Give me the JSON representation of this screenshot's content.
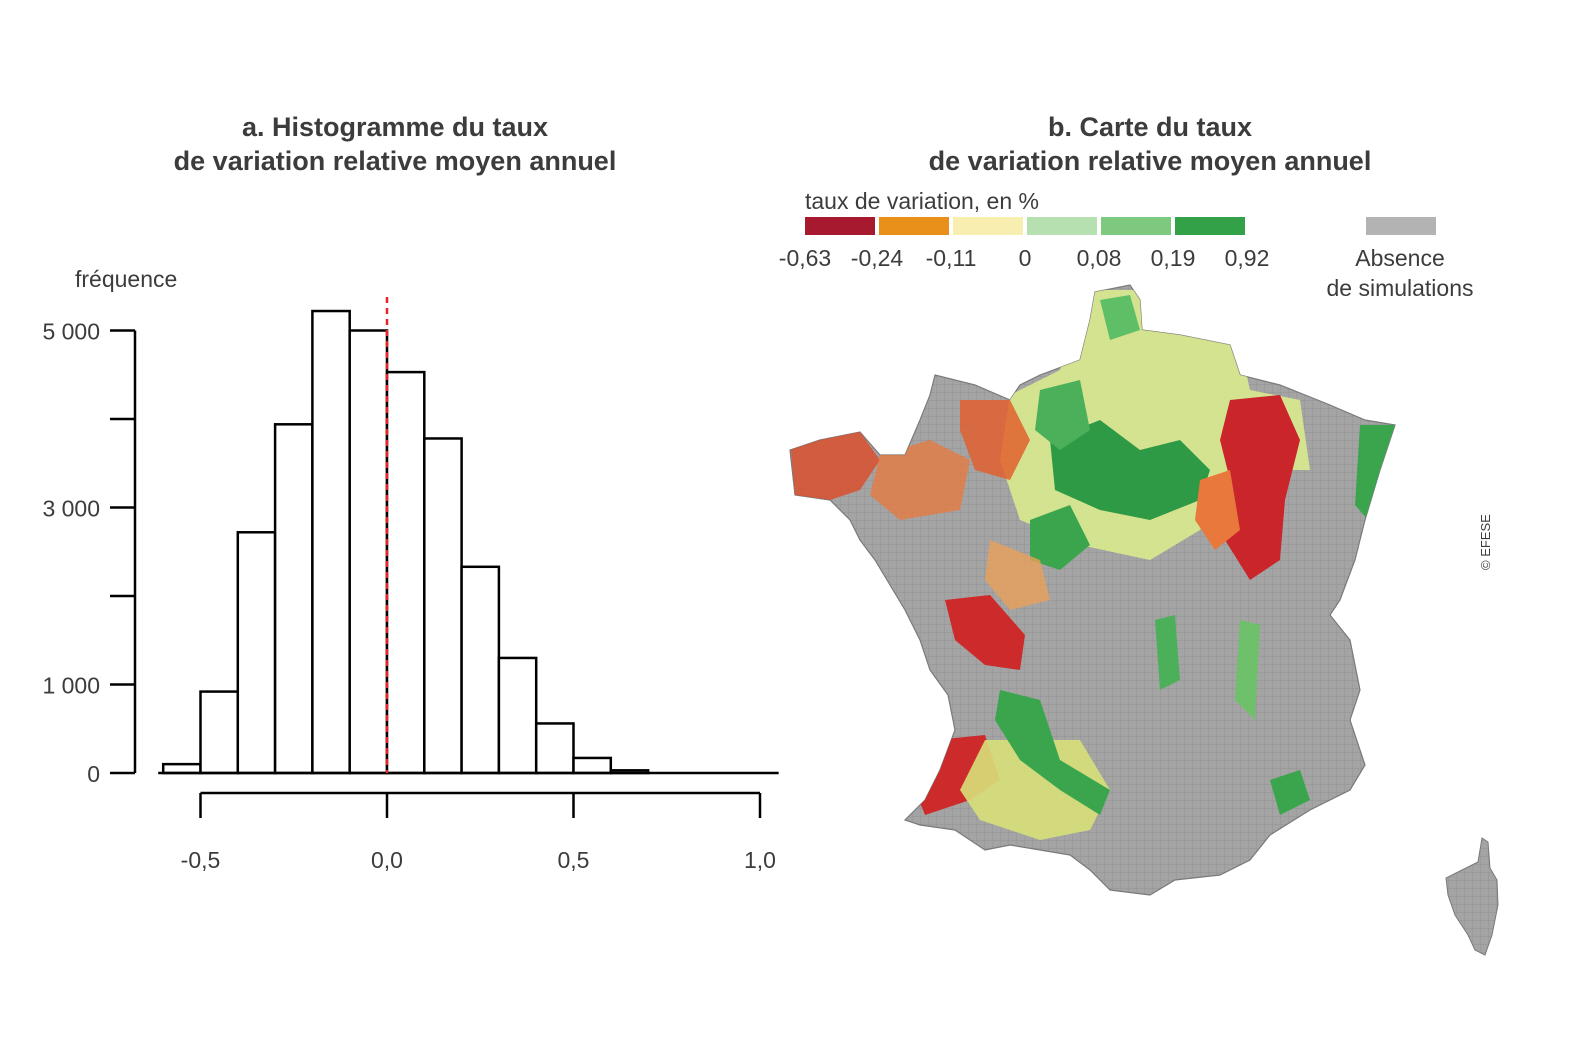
{
  "panel_a": {
    "title_line1": "a. Histogramme du taux",
    "title_line2": "de variation relative moyen annuel"
  },
  "panel_b": {
    "title_line1": "b. Carte du taux",
    "title_line2": "de variation relative moyen annuel",
    "legend_title": "taux de variation, en %",
    "legend_colors": [
      "#a6192e",
      "#e8901a",
      "#f7eeb0",
      "#b7e0b0",
      "#7dc97f",
      "#33a147"
    ],
    "legend_breaks": [
      "-0,63",
      "-0,24",
      "-0,11",
      "0",
      "0,08",
      "0,19",
      "0,92"
    ],
    "absence_color": "#b3b3b3",
    "absence_line1": "Absence",
    "absence_line2": "de simulations",
    "map_description_colors": {
      "no_data": "#9e9e9e",
      "outline": "#7a7a7a"
    }
  },
  "copyright": "© EFESE",
  "chart_data": [
    {
      "type": "bar",
      "subtype": "histogram",
      "ylabel": "fréquence",
      "xlabel": "",
      "bin_edges": [
        -0.6,
        -0.5,
        -0.4,
        -0.3,
        -0.2,
        -0.1,
        0.0,
        0.1,
        0.2,
        0.3,
        0.4,
        0.5,
        0.6,
        0.7
      ],
      "values": [
        100,
        920,
        2720,
        3940,
        5220,
        5000,
        4530,
        3780,
        2330,
        1300,
        560,
        170,
        30
      ],
      "reference_line": {
        "x": 0.0,
        "color": "#e8242a",
        "style": "dashed"
      },
      "xlim": [
        -0.6,
        1.05
      ],
      "ylim": [
        0,
        5000
      ],
      "x_ticks": [
        -0.5,
        0.0,
        0.5,
        1.0
      ],
      "x_tick_labels": [
        "-0,5",
        "0,0",
        "0,5",
        "1,0"
      ],
      "y_ticks": [
        0,
        1000,
        2000,
        3000,
        4000,
        5000
      ],
      "y_tick_labels": [
        "0",
        "1 000",
        "",
        "3 000",
        "",
        "5 000"
      ],
      "grid": false
    }
  ]
}
